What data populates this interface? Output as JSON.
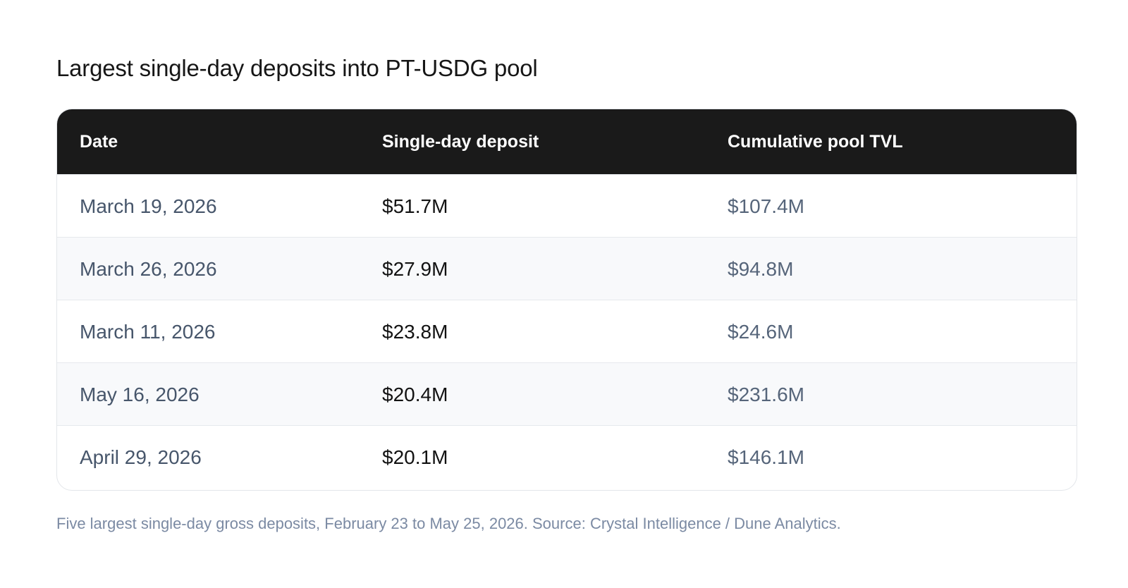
{
  "title": "Largest single-day deposits into PT-USDG pool",
  "caption": "Five largest single-day gross deposits, February 23 to May 25, 2026. Source: Crystal Intelligence / Dune Analytics.",
  "chart_data": {
    "type": "table",
    "columns": [
      "Date",
      "Single-day deposit",
      "Cumulative pool TVL"
    ],
    "rows": [
      [
        "March 19, 2026",
        "$51.7M",
        "$107.4M"
      ],
      [
        "March 26, 2026",
        "$27.9M",
        "$94.8M"
      ],
      [
        "March 11, 2026",
        "$23.8M",
        "$24.6M"
      ],
      [
        "May 16, 2026",
        "$20.4M",
        "$231.6M"
      ],
      [
        "April 29, 2026",
        "$20.1M",
        "$146.1M"
      ]
    ]
  },
  "colors": {
    "header_bg": "#1a1a1a",
    "header_text": "#ffffff",
    "alt_row_bg": "#f8f9fb",
    "caption_text": "#7b8aa3"
  }
}
